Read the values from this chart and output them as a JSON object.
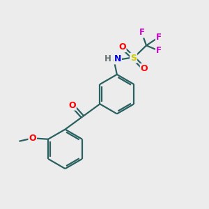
{
  "background_color": "#ececec",
  "bond_color": "#2a6060",
  "atom_colors": {
    "F": "#cc00cc",
    "S": "#cccc00",
    "O": "#ff0000",
    "N": "#0000ee",
    "H": "#607070",
    "C": "#2a6060"
  },
  "figsize": [
    3.0,
    3.0
  ],
  "dpi": 100
}
